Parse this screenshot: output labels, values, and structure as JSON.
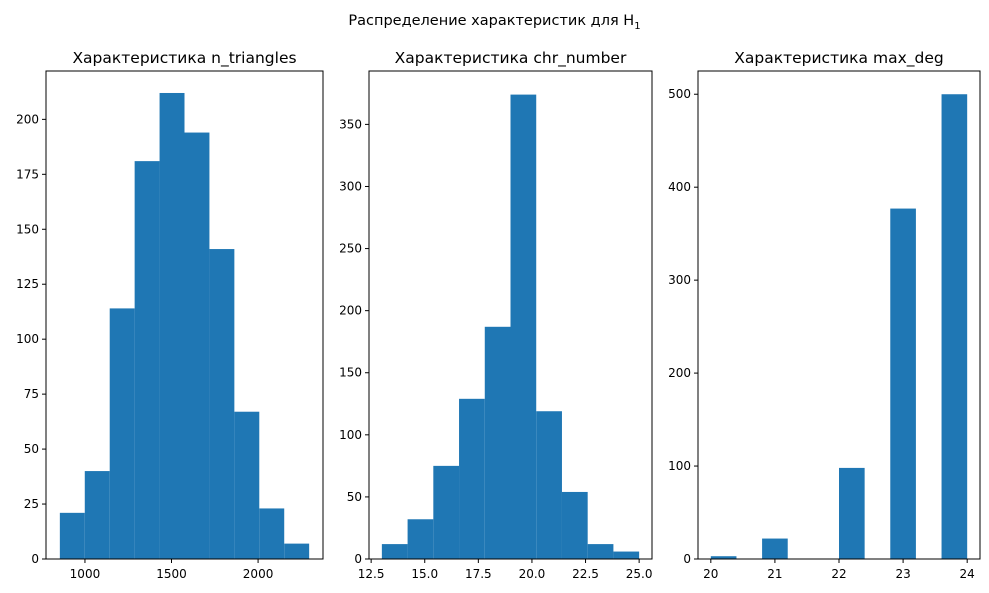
{
  "figure_title": "Распределение характеристик для H",
  "figure_title_subscript": "1",
  "colors": {
    "bar": "#1f77b4"
  },
  "chart_data": [
    {
      "type": "bar",
      "title": "Характеристика n_triangles",
      "xlim": [
        775,
        2375
      ],
      "ylim": [
        0,
        222
      ],
      "xticks": [
        1000,
        1500,
        2000
      ],
      "xtick_labels": [
        "1000",
        "1500",
        "2000"
      ],
      "yticks": [
        0,
        25,
        50,
        75,
        100,
        125,
        150,
        175,
        200
      ],
      "ytick_labels": [
        "0",
        "25",
        "50",
        "75",
        "100",
        "125",
        "150",
        "175",
        "200"
      ],
      "bins": [
        {
          "x0": 855,
          "x1": 999,
          "value": 21
        },
        {
          "x0": 999,
          "x1": 1143,
          "value": 40
        },
        {
          "x0": 1143,
          "x1": 1287,
          "value": 114
        },
        {
          "x0": 1287,
          "x1": 1431,
          "value": 181
        },
        {
          "x0": 1431,
          "x1": 1575,
          "value": 212
        },
        {
          "x0": 1575,
          "x1": 1719,
          "value": 194
        },
        {
          "x0": 1719,
          "x1": 1863,
          "value": 141
        },
        {
          "x0": 1863,
          "x1": 2007,
          "value": 67
        },
        {
          "x0": 2007,
          "x1": 2151,
          "value": 23
        },
        {
          "x0": 2151,
          "x1": 2295,
          "value": 7
        }
      ]
    },
    {
      "type": "bar",
      "title": "Характеристика chr_number",
      "xlim": [
        12.4,
        25.6
      ],
      "ylim": [
        0,
        393
      ],
      "xticks": [
        12.5,
        15,
        17.5,
        20,
        22.5,
        25
      ],
      "xtick_labels": [
        "12.5",
        "15.0",
        "17.5",
        "20.0",
        "22.5",
        "25.0"
      ],
      "yticks": [
        0,
        50,
        100,
        150,
        200,
        250,
        300,
        350
      ],
      "ytick_labels": [
        "0",
        "50",
        "100",
        "150",
        "200",
        "250",
        "300",
        "350"
      ],
      "bins": [
        {
          "x0": 13.0,
          "x1": 14.2,
          "value": 12
        },
        {
          "x0": 14.2,
          "x1": 15.4,
          "value": 32
        },
        {
          "x0": 15.4,
          "x1": 16.6,
          "value": 75
        },
        {
          "x0": 16.6,
          "x1": 17.8,
          "value": 129
        },
        {
          "x0": 17.8,
          "x1": 19.0,
          "value": 187
        },
        {
          "x0": 19.0,
          "x1": 20.2,
          "value": 374
        },
        {
          "x0": 20.2,
          "x1": 21.4,
          "value": 119
        },
        {
          "x0": 21.4,
          "x1": 22.6,
          "value": 54
        },
        {
          "x0": 22.6,
          "x1": 23.8,
          "value": 12
        },
        {
          "x0": 23.8,
          "x1": 25.0,
          "value": 6
        }
      ]
    },
    {
      "type": "bar",
      "title": "Характеристика max_deg",
      "xlim": [
        19.8,
        24.2
      ],
      "ylim": [
        0,
        525
      ],
      "xticks": [
        20,
        21,
        22,
        23,
        24
      ],
      "xtick_labels": [
        "20",
        "21",
        "22",
        "23",
        "24"
      ],
      "yticks": [
        0,
        100,
        200,
        300,
        400,
        500
      ],
      "ytick_labels": [
        "0",
        "100",
        "200",
        "300",
        "400",
        "500"
      ],
      "bins": [
        {
          "x0": 20.0,
          "x1": 20.4,
          "value": 3
        },
        {
          "x0": 20.4,
          "x1": 20.8,
          "value": 0
        },
        {
          "x0": 20.8,
          "x1": 21.2,
          "value": 22
        },
        {
          "x0": 21.2,
          "x1": 21.6,
          "value": 0
        },
        {
          "x0": 21.6,
          "x1": 22.0,
          "value": 0
        },
        {
          "x0": 22.0,
          "x1": 22.4,
          "value": 98
        },
        {
          "x0": 22.4,
          "x1": 22.8,
          "value": 0
        },
        {
          "x0": 22.8,
          "x1": 23.2,
          "value": 377
        },
        {
          "x0": 23.2,
          "x1": 23.6,
          "value": 0
        },
        {
          "x0": 23.6,
          "x1": 24.0,
          "value": 500
        }
      ]
    }
  ]
}
